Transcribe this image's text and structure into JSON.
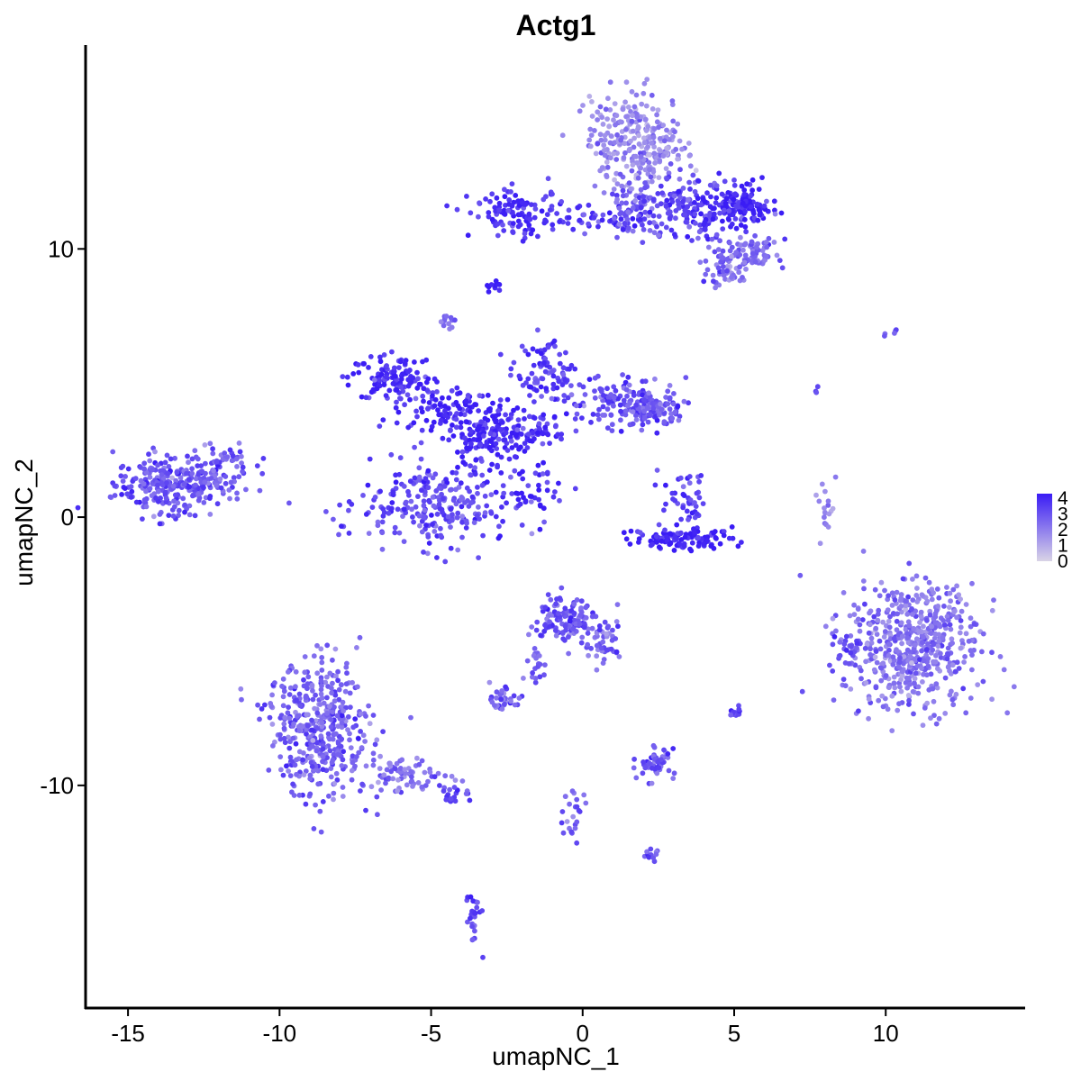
{
  "chart_data": {
    "type": "scatter",
    "title": "Actg1",
    "xlabel": "umapNC_1",
    "ylabel": "umapNC_2",
    "xlim": [
      -16.4,
      14.6
    ],
    "ylim": [
      -18.3,
      17.6
    ],
    "xticks": [
      -15,
      -10,
      -5,
      0,
      5,
      10
    ],
    "xtick_labels": [
      "-15",
      "-10",
      "-5",
      "0",
      "5",
      "10"
    ],
    "yticks": [
      -10,
      0,
      10
    ],
    "ytick_labels": [
      "-10",
      "0",
      "10"
    ],
    "grid": false,
    "legend": {
      "position": "right",
      "ticks": [
        0,
        1,
        2,
        3,
        4
      ],
      "tick_labels": [
        "0",
        "1",
        "2",
        "3",
        "4"
      ],
      "low_color": "#d9d4e6",
      "high_color": "#3a1cf5"
    },
    "clusters": [
      {
        "cx": -13.6,
        "cy": 1.2,
        "sx": 0.9,
        "sy": 0.55,
        "n": 260,
        "level": 2.8
      },
      {
        "cx": -12.0,
        "cy": 1.8,
        "sx": 0.6,
        "sy": 0.5,
        "n": 70,
        "level": 2.6
      },
      {
        "cx": -6.3,
        "cy": 5.2,
        "sx": 0.7,
        "sy": 0.45,
        "n": 120,
        "level": 3.6
      },
      {
        "cx": -4.6,
        "cy": 4.1,
        "sx": 0.8,
        "sy": 0.4,
        "n": 90,
        "level": 3.6
      },
      {
        "cx": -3.2,
        "cy": 3.0,
        "sx": 0.6,
        "sy": 0.6,
        "n": 140,
        "level": 3.7
      },
      {
        "cx": -4.8,
        "cy": 0.4,
        "sx": 1.3,
        "sy": 0.8,
        "n": 260,
        "level": 3.0
      },
      {
        "cx": -1.2,
        "cy": 5.3,
        "sx": 0.5,
        "sy": 0.6,
        "n": 90,
        "level": 3.2
      },
      {
        "cx": 1.4,
        "cy": 4.3,
        "sx": 1.0,
        "sy": 0.45,
        "n": 140,
        "level": 2.9
      },
      {
        "cx": 2.4,
        "cy": 4.0,
        "sx": 0.45,
        "sy": 0.35,
        "n": 70,
        "level": 2.7
      },
      {
        "cx": -1.8,
        "cy": 3.2,
        "sx": 0.7,
        "sy": 0.35,
        "n": 70,
        "level": 3.5
      },
      {
        "cx": -1.6,
        "cy": 1.1,
        "sx": 0.5,
        "sy": 0.5,
        "n": 35,
        "level": 3.8
      },
      {
        "cx": -4.5,
        "cy": 7.3,
        "sx": 0.15,
        "sy": 0.15,
        "n": 12,
        "level": 2.4
      },
      {
        "cx": -2.9,
        "cy": 8.6,
        "sx": 0.1,
        "sy": 0.12,
        "n": 10,
        "level": 4.0
      },
      {
        "cx": -2.1,
        "cy": 11.3,
        "sx": 0.8,
        "sy": 0.4,
        "n": 120,
        "level": 3.4
      },
      {
        "cx": 0.8,
        "cy": 11.1,
        "sx": 0.9,
        "sy": 0.25,
        "n": 50,
        "level": 3.3
      },
      {
        "cx": 1.8,
        "cy": 14.0,
        "sx": 0.8,
        "sy": 0.9,
        "n": 280,
        "level": 1.6
      },
      {
        "cx": 1.8,
        "cy": 11.6,
        "sx": 0.5,
        "sy": 0.5,
        "n": 70,
        "level": 2.6
      },
      {
        "cx": 3.8,
        "cy": 11.4,
        "sx": 0.9,
        "sy": 0.6,
        "n": 170,
        "level": 3.2
      },
      {
        "cx": 5.2,
        "cy": 11.6,
        "sx": 0.5,
        "sy": 0.35,
        "n": 110,
        "level": 3.8
      },
      {
        "cx": 5.4,
        "cy": 9.8,
        "sx": 0.5,
        "sy": 0.35,
        "n": 90,
        "level": 2.3
      },
      {
        "cx": 4.6,
        "cy": 9.1,
        "sx": 0.3,
        "sy": 0.3,
        "n": 35,
        "level": 2.2
      },
      {
        "cx": 3.3,
        "cy": 0.6,
        "sx": 0.4,
        "sy": 0.5,
        "n": 45,
        "level": 3.2
      },
      {
        "cx": 3.3,
        "cy": -0.8,
        "sx": 0.8,
        "sy": 0.2,
        "n": 110,
        "level": 3.9
      },
      {
        "cx": 8.0,
        "cy": 0.3,
        "sx": 0.18,
        "sy": 0.5,
        "n": 18,
        "level": 1.8
      },
      {
        "cx": 10.9,
        "cy": -4.7,
        "sx": 1.1,
        "sy": 1.2,
        "n": 560,
        "level": 2.1
      },
      {
        "cx": 8.7,
        "cy": -4.9,
        "sx": 0.3,
        "sy": 0.35,
        "n": 25,
        "level": 3.0
      },
      {
        "cx": -8.7,
        "cy": -7.9,
        "sx": 0.85,
        "sy": 1.25,
        "n": 420,
        "level": 2.5
      },
      {
        "cx": -6.0,
        "cy": -9.6,
        "sx": 0.7,
        "sy": 0.35,
        "n": 70,
        "level": 2.3
      },
      {
        "cx": -4.4,
        "cy": -10.3,
        "sx": 0.35,
        "sy": 0.2,
        "n": 22,
        "level": 2.8
      },
      {
        "cx": -0.5,
        "cy": -3.8,
        "sx": 0.5,
        "sy": 0.45,
        "n": 130,
        "level": 2.7
      },
      {
        "cx": 0.6,
        "cy": -4.6,
        "sx": 0.4,
        "sy": 0.4,
        "n": 45,
        "level": 2.5
      },
      {
        "cx": -1.5,
        "cy": -5.3,
        "sx": 0.2,
        "sy": 0.5,
        "n": 20,
        "level": 2.6
      },
      {
        "cx": -2.6,
        "cy": -6.8,
        "sx": 0.2,
        "sy": 0.2,
        "n": 35,
        "level": 2.4
      },
      {
        "cx": 2.4,
        "cy": -9.2,
        "sx": 0.3,
        "sy": 0.3,
        "n": 55,
        "level": 2.8
      },
      {
        "cx": 5.0,
        "cy": -7.3,
        "sx": 0.1,
        "sy": 0.1,
        "n": 12,
        "level": 3.3
      },
      {
        "cx": -0.4,
        "cy": -11.2,
        "sx": 0.25,
        "sy": 0.6,
        "n": 25,
        "level": 2.6
      },
      {
        "cx": 2.2,
        "cy": -12.6,
        "sx": 0.2,
        "sy": 0.1,
        "n": 12,
        "level": 2.7
      },
      {
        "cx": -3.6,
        "cy": -14.9,
        "sx": 0.12,
        "sy": 0.5,
        "n": 28,
        "level": 3.0
      },
      {
        "cx": 10.2,
        "cy": 6.8,
        "sx": 0.2,
        "sy": 0.1,
        "n": 5,
        "level": 2.5
      },
      {
        "cx": 7.7,
        "cy": 4.8,
        "sx": 0.05,
        "sy": 0.1,
        "n": 3,
        "level": 2.6
      }
    ]
  }
}
